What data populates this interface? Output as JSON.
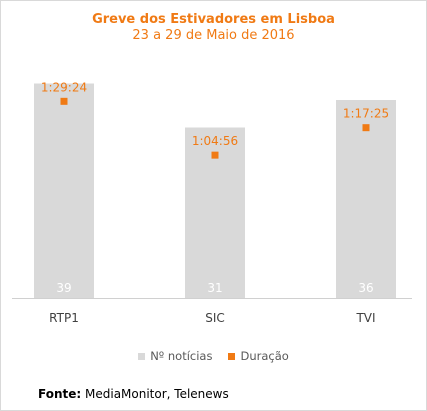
{
  "chart_data": {
    "type": "bar",
    "title": "Greve dos Estivadores em Lisboa",
    "subtitle": "23 a 29 de Maio de 2016",
    "categories": [
      "RTP1",
      "SIC",
      "TVI"
    ],
    "series": [
      {
        "name": "Nº notícias",
        "type": "bar",
        "values": [
          39,
          31,
          36
        ],
        "labels": [
          "39",
          "31",
          "36"
        ],
        "color": "#d9d9d9"
      },
      {
        "name": "Duração",
        "type": "marker",
        "values_seconds": [
          5364,
          3896,
          4645
        ],
        "labels": [
          "1:29:24",
          "1:04:56",
          "1:17:25"
        ],
        "color": "#f07a14"
      }
    ],
    "ylim_bars": [
      0,
      40
    ],
    "ylim_duration_seconds": [
      0,
      6000
    ],
    "grid": false,
    "legend_position": "bottom"
  },
  "legend": {
    "bars": "Nº notícias",
    "markers": "Duração"
  },
  "footer": {
    "label": "Fonte:",
    "source": "MediaMonitor, Telenews"
  },
  "colors": {
    "accent": "#f07a14",
    "bar": "#d9d9d9",
    "axis": "#d0d0d0"
  }
}
